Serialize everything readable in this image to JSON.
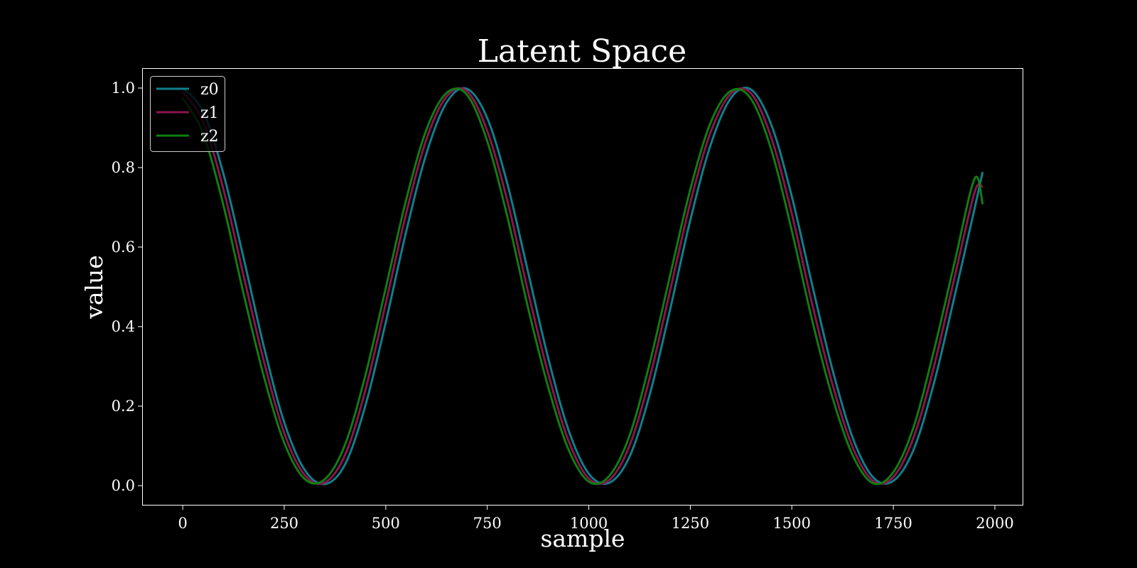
{
  "chart_data": {
    "type": "line",
    "title": "Latent Space",
    "xlabel": "sample",
    "ylabel": "value",
    "xlim": [
      -100,
      2070
    ],
    "ylim": [
      -0.05,
      1.05
    ],
    "x_ticks": [
      0,
      250,
      500,
      750,
      1000,
      1250,
      1500,
      1750,
      2000
    ],
    "x_tick_labels": [
      "0",
      "250",
      "500",
      "750",
      "1000",
      "1250",
      "1500",
      "1750",
      "2000"
    ],
    "y_ticks": [
      0.0,
      0.2,
      0.4,
      0.6,
      0.8,
      1.0
    ],
    "y_tick_labels": [
      "0.0",
      "0.2",
      "0.4",
      "0.6",
      "0.8",
      "1.0"
    ],
    "grid": false,
    "legend_position": "top-left",
    "background": "#000000",
    "x": [
      0,
      50,
      100,
      150,
      200,
      250,
      300,
      350,
      400,
      450,
      500,
      550,
      600,
      650,
      700,
      750,
      800,
      850,
      900,
      950,
      1000,
      1050,
      1100,
      1150,
      1200,
      1250,
      1300,
      1350,
      1400,
      1450,
      1500,
      1550,
      1600,
      1650,
      1700,
      1750,
      1800,
      1850,
      1900,
      1950,
      1970
    ],
    "series": [
      {
        "name": "z0",
        "color": "#0f7f8c",
        "values": [
          1.0,
          0.941,
          0.785,
          0.572,
          0.349,
          0.159,
          0.04,
          0.004,
          0.054,
          0.202,
          0.411,
          0.638,
          0.835,
          0.964,
          0.998,
          0.924,
          0.757,
          0.539,
          0.321,
          0.14,
          0.03,
          0.007,
          0.072,
          0.229,
          0.442,
          0.668,
          0.857,
          0.975,
          0.996,
          0.906,
          0.727,
          0.505,
          0.292,
          0.12,
          0.021,
          0.012,
          0.091,
          0.258,
          0.473,
          0.697,
          0.789
        ]
      },
      {
        "name": "z1",
        "color": "#8c1450",
        "values": [
          0.99,
          0.916,
          0.746,
          0.527,
          0.312,
          0.132,
          0.027,
          0.008,
          0.078,
          0.241,
          0.459,
          0.684,
          0.871,
          0.979,
          0.992,
          0.892,
          0.714,
          0.489,
          0.282,
          0.113,
          0.018,
          0.014,
          0.1,
          0.271,
          0.49,
          0.712,
          0.889,
          0.986,
          0.986,
          0.873,
          0.683,
          0.457,
          0.255,
          0.096,
          0.012,
          0.022,
          0.122,
          0.3,
          0.521,
          0.738,
          0.752
        ]
      },
      {
        "name": "z2",
        "color": "#0f7f0f",
        "values": [
          0.975,
          0.886,
          0.706,
          0.482,
          0.274,
          0.108,
          0.017,
          0.016,
          0.104,
          0.278,
          0.497,
          0.718,
          0.895,
          0.988,
          0.983,
          0.866,
          0.674,
          0.449,
          0.248,
          0.091,
          0.01,
          0.024,
          0.125,
          0.308,
          0.528,
          0.745,
          0.913,
          0.993,
          0.972,
          0.843,
          0.641,
          0.416,
          0.222,
          0.076,
          0.006,
          0.034,
          0.148,
          0.34,
          0.558,
          0.772,
          0.708
        ]
      }
    ]
  }
}
